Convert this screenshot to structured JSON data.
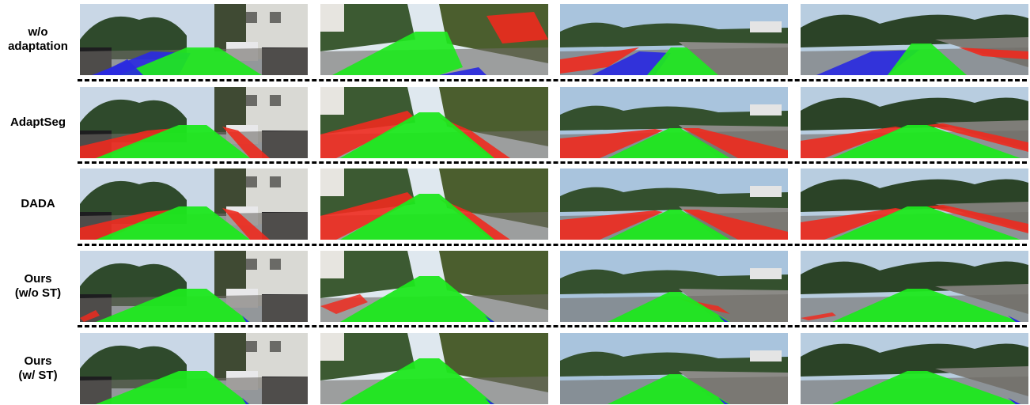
{
  "figure": {
    "rows": [
      {
        "label": "w/o\nadaptation",
        "method": "baseline"
      },
      {
        "label": "AdaptSeg",
        "method": "adaptseg"
      },
      {
        "label": "DADA",
        "method": "dada"
      },
      {
        "label": "Ours\n(w/o ST)",
        "method": "ours_wo_st"
      },
      {
        "label": "Ours\n(w/ ST)",
        "method": "ours_w_st"
      }
    ],
    "columns": 4,
    "overlay_colors": {
      "road": "#1ee81e",
      "blue": "#2a2ae0",
      "red": "#ee2a1e"
    }
  }
}
